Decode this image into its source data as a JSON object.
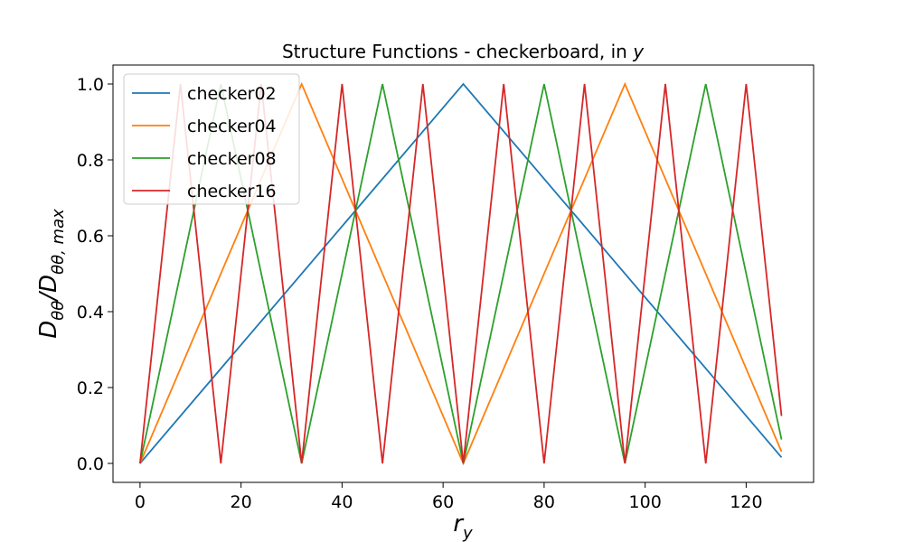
{
  "chart_data": {
    "type": "line",
    "title": "Structure Functions - checkerboard, in ",
    "title_var": "y",
    "xlabel_main": "r",
    "xlabel_sub": "y",
    "ylabel_main": "D",
    "ylabel_sub": "θθ",
    "ylabel_sep": "/",
    "ylabel_sub2": "θθ, max",
    "xlim": [
      -5.35,
      133.35
    ],
    "ylim": [
      -0.05,
      1.05
    ],
    "xticks": [
      0,
      20,
      40,
      60,
      80,
      100,
      120
    ],
    "yticks": [
      0.0,
      0.2,
      0.4,
      0.6,
      0.8,
      1.0
    ],
    "ytick_labels": [
      "0.0",
      "0.2",
      "0.4",
      "0.6",
      "0.8",
      "1.0"
    ],
    "grid": false,
    "legend_position": "top-left",
    "series": [
      {
        "name": "checker02",
        "color": "#1f77b4",
        "period": 128,
        "x": [
          0,
          64,
          127
        ],
        "y": [
          0.0,
          1.0,
          0.016
        ]
      },
      {
        "name": "checker04",
        "color": "#ff7f0e",
        "period": 64,
        "x": [
          0,
          32,
          64,
          96,
          127
        ],
        "y": [
          0.0,
          1.0,
          0.0,
          1.0,
          0.031
        ]
      },
      {
        "name": "checker08",
        "color": "#2ca02c",
        "period": 32,
        "x": [
          0,
          16,
          32,
          48,
          64,
          80,
          96,
          112,
          127
        ],
        "y": [
          0.0,
          1.0,
          0.0,
          1.0,
          0.0,
          1.0,
          0.0,
          1.0,
          0.063
        ]
      },
      {
        "name": "checker16",
        "color": "#d62728",
        "period": 16,
        "x": [
          0,
          8,
          16,
          24,
          32,
          40,
          48,
          56,
          64,
          72,
          80,
          88,
          96,
          104,
          112,
          120,
          127
        ],
        "y": [
          0.0,
          1.0,
          0.0,
          1.0,
          0.0,
          1.0,
          0.0,
          1.0,
          0.0,
          1.0,
          0.0,
          1.0,
          0.0,
          1.0,
          0.0,
          1.0,
          0.125
        ]
      }
    ]
  }
}
